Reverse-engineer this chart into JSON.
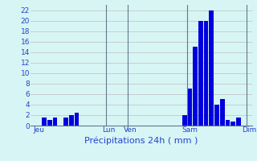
{
  "bar_values": [
    0,
    0,
    1.5,
    1.0,
    1.5,
    0,
    1.5,
    2.0,
    2.5,
    0,
    0,
    0,
    0,
    0,
    0,
    0,
    0,
    0,
    0,
    0,
    0,
    0,
    0,
    0,
    0,
    0,
    0,
    0,
    2.0,
    7.0,
    15.0,
    20.0,
    20.0,
    22.0,
    4.0,
    5.0,
    1.0,
    0.8,
    1.5,
    0,
    0
  ],
  "ylim": [
    0,
    23
  ],
  "yticks": [
    0,
    2,
    4,
    6,
    8,
    10,
    12,
    14,
    16,
    18,
    20,
    22
  ],
  "bar_color": "#0000dd",
  "bg_color": "#d8f5f5",
  "grid_color": "#c0c8c8",
  "axis_label_color": "#2244cc",
  "tick_label_color": "#2244cc",
  "xlabel": "Précipitations 24h ( mm )",
  "day_labels": [
    "Jeu",
    "Lun",
    "Ven",
    "Sam",
    "Dim"
  ],
  "day_tick_positions": [
    1,
    14,
    18,
    29,
    40
  ],
  "vline_positions": [
    13.5,
    17.5,
    28.5,
    39.5
  ],
  "n_bars": 41,
  "xlabel_fontsize": 8,
  "tick_fontsize": 6.5
}
